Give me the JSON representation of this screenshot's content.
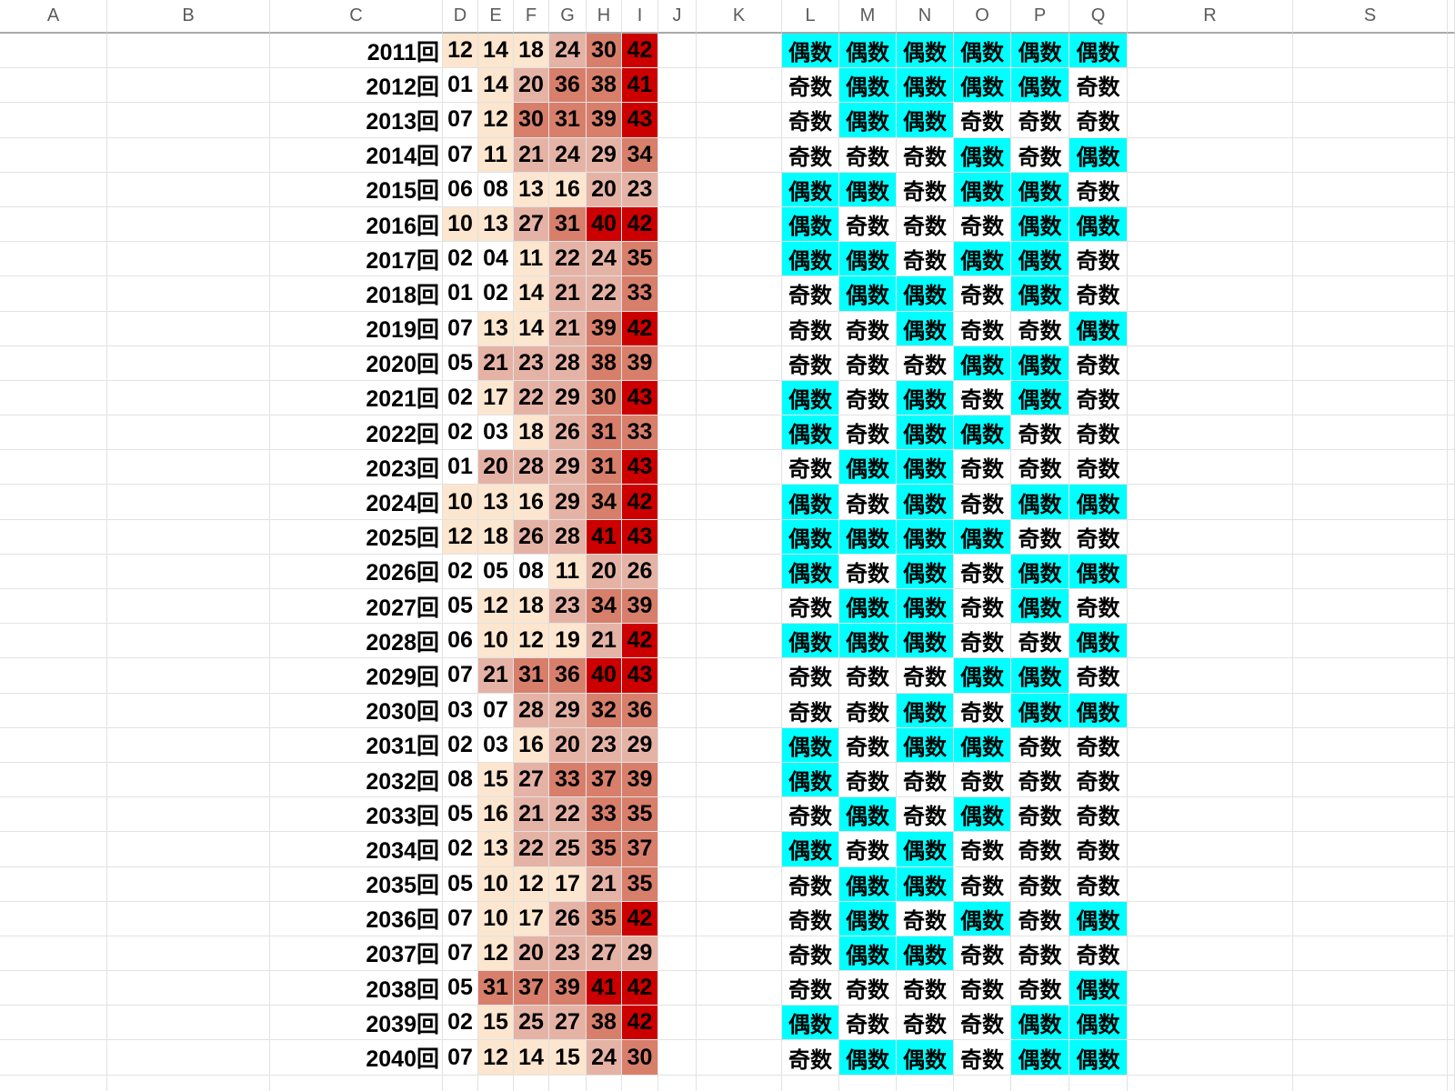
{
  "sheet": {
    "column_headers": [
      "A",
      "B",
      "C",
      "D",
      "E",
      "F",
      "G",
      "H",
      "I",
      "J",
      "K",
      "L",
      "M",
      "N",
      "O",
      "P",
      "Q",
      "R",
      "S"
    ],
    "number_columns": [
      "D",
      "E",
      "F",
      "G",
      "H",
      "I"
    ],
    "parity_columns": [
      "L",
      "M",
      "N",
      "O",
      "P",
      "Q"
    ],
    "parity": {
      "even_label": "偶数",
      "odd_label": "奇数"
    },
    "colors": {
      "even_bg": "#00ffff",
      "odd_bg": "#ffffff",
      "gridline": "#e2e2e2",
      "header_border": "#a9a9a9",
      "header_text": "#5b5b5b",
      "cell_text": "#000000"
    },
    "heatmap_buckets": [
      {
        "min": 1,
        "max": 9,
        "color": "#ffffff"
      },
      {
        "min": 10,
        "max": 19,
        "color": "#fce6cf"
      },
      {
        "min": 20,
        "max": 29,
        "color": "#e5b3a6"
      },
      {
        "min": 30,
        "max": 39,
        "color": "#d87f6c"
      },
      {
        "min": 40,
        "max": 43,
        "color": "#cc0000"
      }
    ],
    "rows": [
      {
        "label": "2011回",
        "numbers": [
          "12",
          "14",
          "18",
          "24",
          "30",
          "42"
        ],
        "parity": [
          "偶数",
          "偶数",
          "偶数",
          "偶数",
          "偶数",
          "偶数"
        ]
      },
      {
        "label": "2012回",
        "numbers": [
          "01",
          "14",
          "20",
          "36",
          "38",
          "41"
        ],
        "parity": [
          "奇数",
          "偶数",
          "偶数",
          "偶数",
          "偶数",
          "奇数"
        ]
      },
      {
        "label": "2013回",
        "numbers": [
          "07",
          "12",
          "30",
          "31",
          "39",
          "43"
        ],
        "parity": [
          "奇数",
          "偶数",
          "偶数",
          "奇数",
          "奇数",
          "奇数"
        ]
      },
      {
        "label": "2014回",
        "numbers": [
          "07",
          "11",
          "21",
          "24",
          "29",
          "34"
        ],
        "parity": [
          "奇数",
          "奇数",
          "奇数",
          "偶数",
          "奇数",
          "偶数"
        ]
      },
      {
        "label": "2015回",
        "numbers": [
          "06",
          "08",
          "13",
          "16",
          "20",
          "23"
        ],
        "parity": [
          "偶数",
          "偶数",
          "奇数",
          "偶数",
          "偶数",
          "奇数"
        ]
      },
      {
        "label": "2016回",
        "numbers": [
          "10",
          "13",
          "27",
          "31",
          "40",
          "42"
        ],
        "parity": [
          "偶数",
          "奇数",
          "奇数",
          "奇数",
          "偶数",
          "偶数"
        ]
      },
      {
        "label": "2017回",
        "numbers": [
          "02",
          "04",
          "11",
          "22",
          "24",
          "35"
        ],
        "parity": [
          "偶数",
          "偶数",
          "奇数",
          "偶数",
          "偶数",
          "奇数"
        ]
      },
      {
        "label": "2018回",
        "numbers": [
          "01",
          "02",
          "14",
          "21",
          "22",
          "33"
        ],
        "parity": [
          "奇数",
          "偶数",
          "偶数",
          "奇数",
          "偶数",
          "奇数"
        ]
      },
      {
        "label": "2019回",
        "numbers": [
          "07",
          "13",
          "14",
          "21",
          "39",
          "42"
        ],
        "parity": [
          "奇数",
          "奇数",
          "偶数",
          "奇数",
          "奇数",
          "偶数"
        ]
      },
      {
        "label": "2020回",
        "numbers": [
          "05",
          "21",
          "23",
          "28",
          "38",
          "39"
        ],
        "parity": [
          "奇数",
          "奇数",
          "奇数",
          "偶数",
          "偶数",
          "奇数"
        ]
      },
      {
        "label": "2021回",
        "numbers": [
          "02",
          "17",
          "22",
          "29",
          "30",
          "43"
        ],
        "parity": [
          "偶数",
          "奇数",
          "偶数",
          "奇数",
          "偶数",
          "奇数"
        ]
      },
      {
        "label": "2022回",
        "numbers": [
          "02",
          "03",
          "18",
          "26",
          "31",
          "33"
        ],
        "parity": [
          "偶数",
          "奇数",
          "偶数",
          "偶数",
          "奇数",
          "奇数"
        ]
      },
      {
        "label": "2023回",
        "numbers": [
          "01",
          "20",
          "28",
          "29",
          "31",
          "43"
        ],
        "parity": [
          "奇数",
          "偶数",
          "偶数",
          "奇数",
          "奇数",
          "奇数"
        ]
      },
      {
        "label": "2024回",
        "numbers": [
          "10",
          "13",
          "16",
          "29",
          "34",
          "42"
        ],
        "parity": [
          "偶数",
          "奇数",
          "偶数",
          "奇数",
          "偶数",
          "偶数"
        ]
      },
      {
        "label": "2025回",
        "numbers": [
          "12",
          "18",
          "26",
          "28",
          "41",
          "43"
        ],
        "parity": [
          "偶数",
          "偶数",
          "偶数",
          "偶数",
          "奇数",
          "奇数"
        ]
      },
      {
        "label": "2026回",
        "numbers": [
          "02",
          "05",
          "08",
          "11",
          "20",
          "26"
        ],
        "parity": [
          "偶数",
          "奇数",
          "偶数",
          "奇数",
          "偶数",
          "偶数"
        ]
      },
      {
        "label": "2027回",
        "numbers": [
          "05",
          "12",
          "18",
          "23",
          "34",
          "39"
        ],
        "parity": [
          "奇数",
          "偶数",
          "偶数",
          "奇数",
          "偶数",
          "奇数"
        ]
      },
      {
        "label": "2028回",
        "numbers": [
          "06",
          "10",
          "12",
          "19",
          "21",
          "42"
        ],
        "parity": [
          "偶数",
          "偶数",
          "偶数",
          "奇数",
          "奇数",
          "偶数"
        ]
      },
      {
        "label": "2029回",
        "numbers": [
          "07",
          "21",
          "31",
          "36",
          "40",
          "43"
        ],
        "parity": [
          "奇数",
          "奇数",
          "奇数",
          "偶数",
          "偶数",
          "奇数"
        ]
      },
      {
        "label": "2030回",
        "numbers": [
          "03",
          "07",
          "28",
          "29",
          "32",
          "36"
        ],
        "parity": [
          "奇数",
          "奇数",
          "偶数",
          "奇数",
          "偶数",
          "偶数"
        ]
      },
      {
        "label": "2031回",
        "numbers": [
          "02",
          "03",
          "16",
          "20",
          "23",
          "29"
        ],
        "parity": [
          "偶数",
          "奇数",
          "偶数",
          "偶数",
          "奇数",
          "奇数"
        ]
      },
      {
        "label": "2032回",
        "numbers": [
          "08",
          "15",
          "27",
          "33",
          "37",
          "39"
        ],
        "parity": [
          "偶数",
          "奇数",
          "奇数",
          "奇数",
          "奇数",
          "奇数"
        ]
      },
      {
        "label": "2033回",
        "numbers": [
          "05",
          "16",
          "21",
          "22",
          "33",
          "35"
        ],
        "parity": [
          "奇数",
          "偶数",
          "奇数",
          "偶数",
          "奇数",
          "奇数"
        ]
      },
      {
        "label": "2034回",
        "numbers": [
          "02",
          "13",
          "22",
          "25",
          "35",
          "37"
        ],
        "parity": [
          "偶数",
          "奇数",
          "偶数",
          "奇数",
          "奇数",
          "奇数"
        ]
      },
      {
        "label": "2035回",
        "numbers": [
          "05",
          "10",
          "12",
          "17",
          "21",
          "35"
        ],
        "parity": [
          "奇数",
          "偶数",
          "偶数",
          "奇数",
          "奇数",
          "奇数"
        ]
      },
      {
        "label": "2036回",
        "numbers": [
          "07",
          "10",
          "17",
          "26",
          "35",
          "42"
        ],
        "parity": [
          "奇数",
          "偶数",
          "奇数",
          "偶数",
          "奇数",
          "偶数"
        ]
      },
      {
        "label": "2037回",
        "numbers": [
          "07",
          "12",
          "20",
          "23",
          "27",
          "29"
        ],
        "parity": [
          "奇数",
          "偶数",
          "偶数",
          "奇数",
          "奇数",
          "奇数"
        ]
      },
      {
        "label": "2038回",
        "numbers": [
          "05",
          "31",
          "37",
          "39",
          "41",
          "42"
        ],
        "parity": [
          "奇数",
          "奇数",
          "奇数",
          "奇数",
          "奇数",
          "偶数"
        ]
      },
      {
        "label": "2039回",
        "numbers": [
          "02",
          "15",
          "25",
          "27",
          "38",
          "42"
        ],
        "parity": [
          "偶数",
          "奇数",
          "奇数",
          "奇数",
          "偶数",
          "偶数"
        ]
      },
      {
        "label": "2040回",
        "numbers": [
          "07",
          "12",
          "14",
          "15",
          "24",
          "30"
        ],
        "parity": [
          "奇数",
          "偶数",
          "偶数",
          "奇数",
          "偶数",
          "偶数"
        ]
      }
    ]
  }
}
